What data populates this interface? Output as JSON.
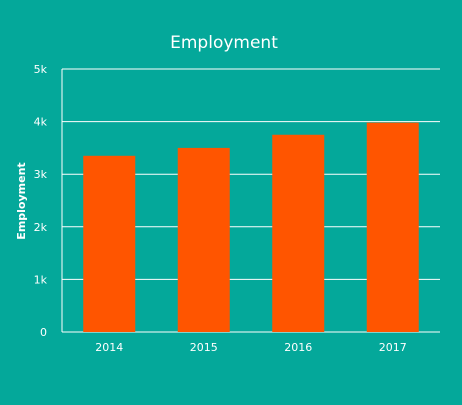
{
  "chart_data": {
    "type": "bar",
    "title": "Employment",
    "xlabel": "",
    "ylabel": "Employment",
    "categories": [
      "2014",
      "2015",
      "2016",
      "2017"
    ],
    "series": [
      {
        "values": [
          3350,
          3500,
          3750,
          3980
        ]
      }
    ],
    "ylim": [
      0,
      5000
    ],
    "yticks": [
      0,
      1000,
      2000,
      3000,
      4000,
      5000
    ],
    "ytick_labels": [
      "0",
      "1k",
      "2k",
      "3k",
      "4k",
      "5k"
    ],
    "grid": true,
    "legend": "none",
    "colors": {
      "background": "#04a89a",
      "bar": "#ff5500",
      "grid": "#ffffff",
      "text": "#ffffff"
    }
  }
}
